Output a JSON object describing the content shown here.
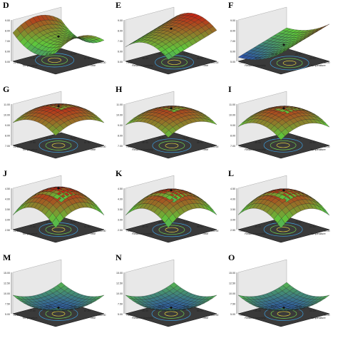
{
  "colors": {
    "high": "#c81e14",
    "mid": "#5ec83c",
    "low": "#1e32c8",
    "floor": "#3a3a3a",
    "axis": "#222222"
  },
  "panels": [
    {
      "letter": "D",
      "zlabel": "TS (%)",
      "xlabel": "Temperature",
      "ylabel": "Time",
      "zticks": [
        "9.00",
        "8.00",
        "7.00",
        "6.00",
        "5.00"
      ],
      "xticks": [
        "22.50",
        "27.50",
        "32.50"
      ],
      "yticks": [
        "75.00",
        "87.50",
        "100.00"
      ]
    },
    {
      "letter": "E",
      "zlabel": "TS (%)",
      "xlabel": "Relative Humidity",
      "ylabel": "Time",
      "zticks": [
        "9.00",
        "8.00",
        "7.00",
        "6.00",
        "5.00"
      ],
      "xticks": [
        "75.00",
        "80.00",
        "85.00"
      ],
      "yticks": [
        "75.00",
        "88.00",
        "100.00"
      ]
    },
    {
      "letter": "F",
      "zlabel": "TS (%)",
      "xlabel": "Relative Humidity",
      "ylabel": "Temperature",
      "zticks": [
        "9.00",
        "8.00",
        "7.00",
        "6.00",
        "5.00"
      ],
      "xticks": [
        "75.00",
        "80.00",
        "85.00"
      ],
      "yticks": [
        "25.00",
        "30.00",
        "35.00"
      ]
    },
    {
      "letter": "G",
      "zlabel": "HPS (%)",
      "xlabel": "Temperature",
      "ylabel": "Time",
      "zticks": [
        "11.00",
        "10.00",
        "9.00",
        "8.00",
        "7.00"
      ],
      "xticks": [
        "22.50",
        "27.50",
        "32.50"
      ],
      "yticks": [
        "75.00",
        "87.50",
        "100.00"
      ]
    },
    {
      "letter": "H",
      "zlabel": "HPS (%)",
      "xlabel": "Relative Humidity",
      "ylabel": "Time",
      "zticks": [
        "11.00",
        "10.00",
        "9.00",
        "8.00",
        "7.00"
      ],
      "xticks": [
        "75.00",
        "80.00",
        "85.00"
      ],
      "yticks": [
        "75.00",
        "88.00",
        "100.00"
      ]
    },
    {
      "letter": "I",
      "zlabel": "HPS (%)",
      "xlabel": "Relative Humidity",
      "ylabel": "Temperature",
      "zticks": [
        "11.00",
        "10.00",
        "9.00",
        "8.00",
        "7.00"
      ],
      "xticks": [
        "75.00",
        "80.00",
        "85.00"
      ],
      "yticks": [
        "25.00",
        "30.00",
        "35.00"
      ]
    },
    {
      "letter": "J",
      "zlabel": "TLC (%)",
      "xlabel": "Temperature",
      "ylabel": "Time",
      "zticks": [
        "4.50",
        "4.00",
        "3.50",
        "3.00",
        "2.50"
      ],
      "xticks": [
        "22.50",
        "27.50",
        "32.50"
      ],
      "yticks": [
        "75.00",
        "87.50",
        "100.00"
      ]
    },
    {
      "letter": "K",
      "zlabel": "TLC (%)",
      "xlabel": "Relative Humidity",
      "ylabel": "Time",
      "zticks": [
        "4.50",
        "4.00",
        "3.50",
        "3.00",
        "2.50"
      ],
      "xticks": [
        "75.00",
        "80.00",
        "85.00"
      ],
      "yticks": [
        "75.00",
        "88.00",
        "100.00"
      ]
    },
    {
      "letter": "L",
      "zlabel": "TLC (%)",
      "xlabel": "Relative Humidity",
      "ylabel": "Temperature",
      "zticks": [
        "4.50",
        "4.00",
        "3.50",
        "3.00",
        "2.50"
      ],
      "xticks": [
        "75.00",
        "80.00",
        "85.00"
      ],
      "yticks": [
        "25.00",
        "30.00",
        "35.00"
      ]
    },
    {
      "letter": "M",
      "zlabel": "TPC (GAE g/100g fw)",
      "xlabel": "Temperature",
      "ylabel": "Time",
      "zticks": [
        "15.00",
        "12.50",
        "10.00",
        "7.50",
        "5.00"
      ],
      "xticks": [
        "22.50",
        "27.50",
        "32.50"
      ],
      "yticks": [
        "75.00",
        "87.50",
        "100.00"
      ]
    },
    {
      "letter": "N",
      "zlabel": "TPC (GAE g/100g fw)",
      "xlabel": "Relative Humidity",
      "ylabel": "Time",
      "zticks": [
        "15.00",
        "12.50",
        "10.00",
        "7.50",
        "5.00"
      ],
      "xticks": [
        "75.00",
        "80.00",
        "85.00"
      ],
      "yticks": [
        "75.00",
        "88.00",
        "100.00"
      ]
    },
    {
      "letter": "O",
      "zlabel": "TPC (GAE g/100g fw)",
      "xlabel": "Relative Humidity",
      "ylabel": "Temperature",
      "zticks": [
        "15.00",
        "12.50",
        "10.00",
        "7.50",
        "5.00"
      ],
      "xticks": [
        "75.00",
        "80.00",
        "85.00"
      ],
      "yticks": [
        "25.00",
        "30.00",
        "35.00"
      ]
    }
  ],
  "chart_data": [
    {
      "type": "surface",
      "panel": "D",
      "shape": "saddle",
      "level": 0.6,
      "peak": 0.9,
      "skew": -0.6
    },
    {
      "type": "surface",
      "panel": "E",
      "shape": "ridge",
      "level": 0.5,
      "peak": 0.8,
      "skew": 0.5
    },
    {
      "type": "surface",
      "panel": "F",
      "shape": "slope",
      "level": 0.4,
      "peak": 0.7,
      "skew": 0.9
    },
    {
      "type": "surface",
      "panel": "G",
      "shape": "dome",
      "level": 0.55,
      "peak": 0.95,
      "skew": 0.0
    },
    {
      "type": "surface",
      "panel": "H",
      "shape": "dome",
      "level": 0.5,
      "peak": 0.9,
      "skew": 0.1
    },
    {
      "type": "surface",
      "panel": "I",
      "shape": "dome",
      "level": 0.45,
      "peak": 0.9,
      "skew": -0.1
    },
    {
      "type": "surface",
      "panel": "J",
      "shape": "dome",
      "level": 0.35,
      "peak": 1.0,
      "skew": 0.0
    },
    {
      "type": "surface",
      "panel": "K",
      "shape": "dome",
      "level": 0.35,
      "peak": 0.95,
      "skew": 0.1
    },
    {
      "type": "surface",
      "panel": "L",
      "shape": "dome",
      "level": 0.35,
      "peak": 0.95,
      "skew": -0.1
    },
    {
      "type": "surface",
      "panel": "M",
      "shape": "bowl",
      "level": 0.15,
      "peak": 0.45,
      "skew": 0.0
    },
    {
      "type": "surface",
      "panel": "N",
      "shape": "bowl",
      "level": 0.15,
      "peak": 0.45,
      "skew": 0.0
    },
    {
      "type": "surface",
      "panel": "O",
      "shape": "bowl",
      "level": 0.15,
      "peak": 0.45,
      "skew": 0.0
    }
  ]
}
